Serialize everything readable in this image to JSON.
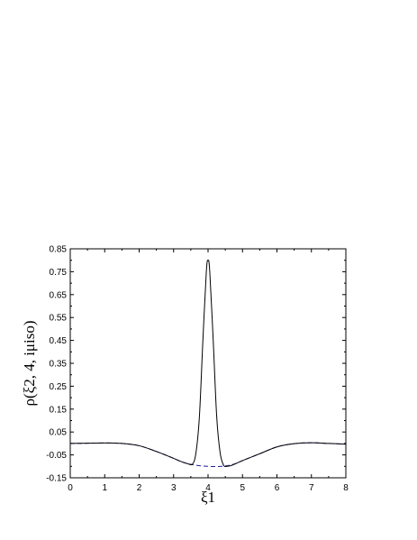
{
  "chart_data": {
    "type": "line",
    "title": "",
    "xlabel": "ξ1",
    "ylabel": "ρ(ξ2, 4, iμiso)",
    "xlim": [
      0,
      8
    ],
    "ylim": [
      -0.15,
      0.85
    ],
    "grid": false,
    "legend": "none",
    "xticks": [
      "0",
      "1",
      "2",
      "3",
      "4",
      "5",
      "6",
      "7",
      "8"
    ],
    "yticks": [
      "-0.15",
      "-0.05",
      "0.05",
      "0.15",
      "0.25",
      "0.35",
      "0.45",
      "0.55",
      "0.65",
      "0.75",
      "0.85"
    ],
    "series": [
      {
        "style": "solid",
        "color": "#000000",
        "x": [
          0,
          0.5,
          1,
          1.5,
          2,
          2.5,
          3,
          3.2,
          3.4,
          3.55,
          3.65,
          3.75,
          3.85,
          3.95,
          4.0,
          4.05,
          4.15,
          4.25,
          4.35,
          4.45,
          4.55,
          4.7,
          5,
          5.5,
          6,
          6.5,
          7,
          7.5,
          8
        ],
        "y": [
          0.0,
          0.001,
          0.002,
          0.0,
          -0.01,
          -0.035,
          -0.065,
          -0.078,
          -0.088,
          -0.09,
          -0.04,
          0.12,
          0.45,
          0.75,
          0.8,
          0.75,
          0.45,
          0.12,
          -0.04,
          -0.095,
          -0.1,
          -0.095,
          -0.075,
          -0.045,
          -0.015,
          -0.001,
          0.003,
          0.0,
          -0.003
        ]
      },
      {
        "style": "dashed",
        "color": "#1a1aa8",
        "x": [
          0,
          0.5,
          1,
          1.5,
          2,
          2.5,
          3,
          3.2,
          3.4,
          3.6,
          3.8,
          4.0,
          4.2,
          4.4,
          4.6,
          4.8,
          5,
          5.5,
          6,
          6.5,
          7,
          7.5,
          8
        ],
        "y": [
          0.0,
          0.001,
          0.002,
          0.0,
          -0.01,
          -0.035,
          -0.065,
          -0.078,
          -0.088,
          -0.094,
          -0.098,
          -0.1,
          -0.101,
          -0.1,
          -0.096,
          -0.088,
          -0.075,
          -0.045,
          -0.015,
          -0.001,
          0.003,
          0.0,
          -0.003
        ]
      }
    ]
  }
}
